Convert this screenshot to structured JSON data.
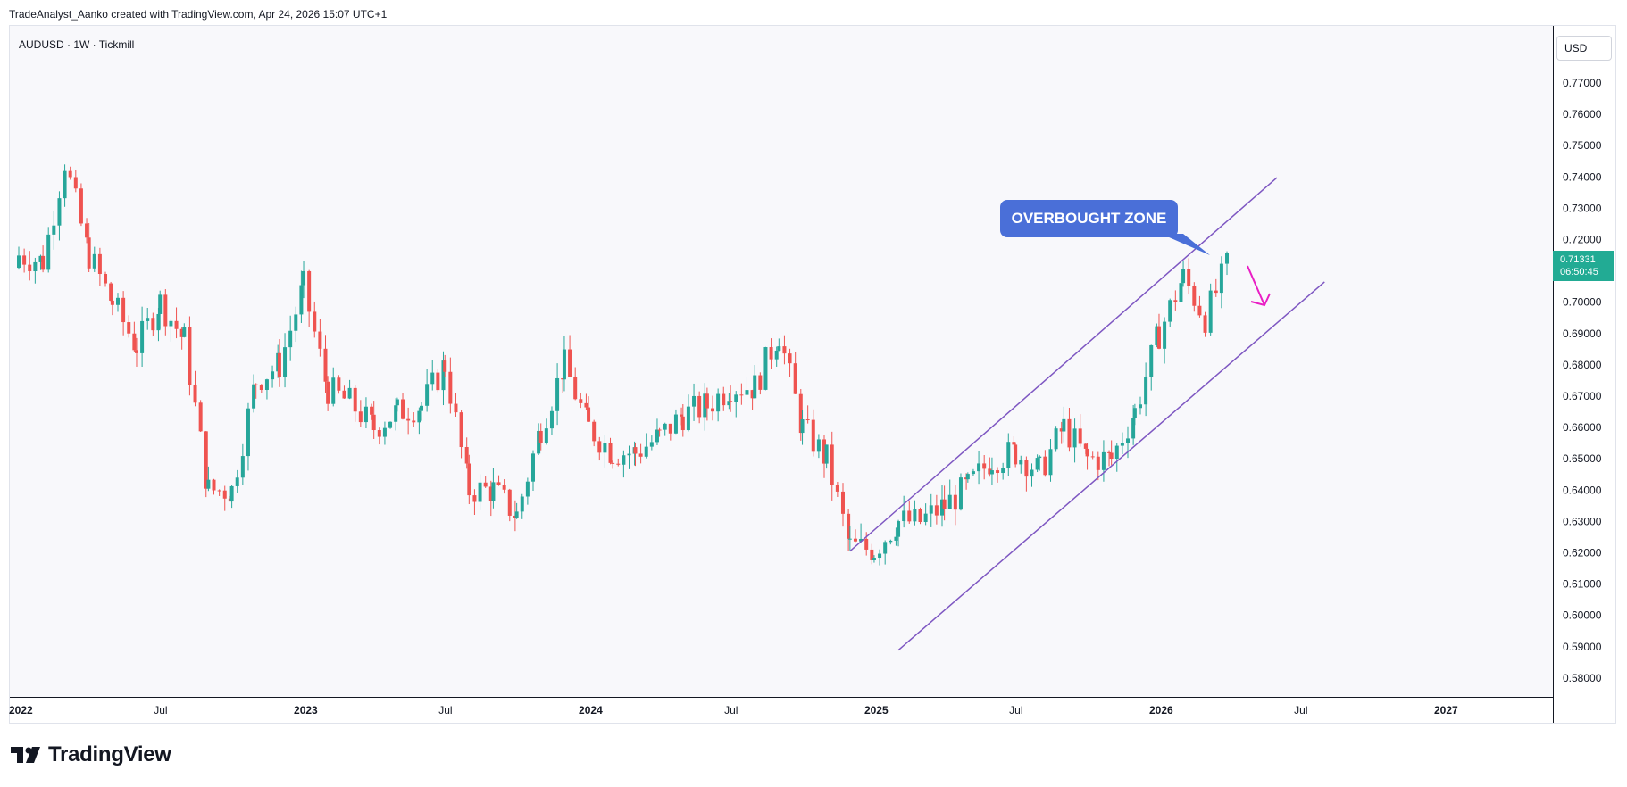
{
  "header": {
    "attribution": "TradeAnalyst_Aanko created with TradingView.com, Apr 24, 2026 15:07 UTC+1",
    "symbol_line": "AUDUSD · 1W · Tickmill"
  },
  "currency_button": "USD",
  "price_badge": {
    "price": "0.71331",
    "countdown": "06:50:45"
  },
  "annotation": {
    "callout_text": "OVERBOUGHT ZONE"
  },
  "brand": {
    "logo_text": "TradingView"
  },
  "colors": {
    "up": "#26a69a",
    "down": "#ef5350",
    "channel": "#7e57c2",
    "arrow": "#e91ec4",
    "callout": "#4a6fd8",
    "price_badge": "#22ab94"
  },
  "chart_data": {
    "type": "candlestick",
    "y_ticks": [
      "0.77000",
      "0.76000",
      "0.75000",
      "0.74000",
      "0.73000",
      "0.72000",
      "0.71000",
      "0.70000",
      "0.69000",
      "0.68000",
      "0.67000",
      "0.66000",
      "0.65000",
      "0.64000",
      "0.63000",
      "0.62000",
      "0.61000",
      "0.60000",
      "0.59000",
      "0.58000"
    ],
    "x_ticks": [
      {
        "label": "2022",
        "date": "2022-01-01",
        "bold": true
      },
      {
        "label": "Jul",
        "date": "2022-07-01",
        "bold": false
      },
      {
        "label": "2023",
        "date": "2023-01-01",
        "bold": true
      },
      {
        "label": "Jul",
        "date": "2023-07-01",
        "bold": false
      },
      {
        "label": "2024",
        "date": "2024-01-01",
        "bold": true
      },
      {
        "label": "Jul",
        "date": "2024-07-01",
        "bold": false
      },
      {
        "label": "2025",
        "date": "2025-01-01",
        "bold": true
      },
      {
        "label": "Jul",
        "date": "2025-07-01",
        "bold": false
      },
      {
        "label": "2026",
        "date": "2026-01-01",
        "bold": true
      },
      {
        "label": "Jul",
        "date": "2026-07-01",
        "bold": false
      },
      {
        "label": "2027",
        "date": "2027-01-01",
        "bold": true
      }
    ],
    "ylim": [
      0.575,
      0.785
    ],
    "series_close": [
      {
        "date": "2022-01-01",
        "value": 0.715
      },
      {
        "date": "2022-02-01",
        "value": 0.713
      },
      {
        "date": "2022-03-01",
        "value": 0.745
      },
      {
        "date": "2022-04-01",
        "value": 0.715
      },
      {
        "date": "2022-05-01",
        "value": 0.7
      },
      {
        "date": "2022-06-01",
        "value": 0.686
      },
      {
        "date": "2022-07-01",
        "value": 0.7
      },
      {
        "date": "2022-08-01",
        "value": 0.688
      },
      {
        "date": "2022-09-01",
        "value": 0.64
      },
      {
        "date": "2022-10-01",
        "value": 0.64
      },
      {
        "date": "2022-11-01",
        "value": 0.675
      },
      {
        "date": "2022-12-01",
        "value": 0.68
      },
      {
        "date": "2023-01-01",
        "value": 0.705
      },
      {
        "date": "2023-02-01",
        "value": 0.672
      },
      {
        "date": "2023-03-01",
        "value": 0.668
      },
      {
        "date": "2023-04-01",
        "value": 0.66
      },
      {
        "date": "2023-05-01",
        "value": 0.665
      },
      {
        "date": "2023-06-01",
        "value": 0.667
      },
      {
        "date": "2023-07-01",
        "value": 0.68
      },
      {
        "date": "2023-08-01",
        "value": 0.64
      },
      {
        "date": "2023-09-01",
        "value": 0.64
      },
      {
        "date": "2023-10-01",
        "value": 0.632
      },
      {
        "date": "2023-11-01",
        "value": 0.66
      },
      {
        "date": "2023-12-01",
        "value": 0.68
      },
      {
        "date": "2024-01-01",
        "value": 0.66
      },
      {
        "date": "2024-02-01",
        "value": 0.652
      },
      {
        "date": "2024-03-01",
        "value": 0.652
      },
      {
        "date": "2024-04-01",
        "value": 0.657
      },
      {
        "date": "2024-05-01",
        "value": 0.664
      },
      {
        "date": "2024-06-01",
        "value": 0.667
      },
      {
        "date": "2024-07-01",
        "value": 0.673
      },
      {
        "date": "2024-08-01",
        "value": 0.673
      },
      {
        "date": "2024-09-01",
        "value": 0.69
      },
      {
        "date": "2024-10-01",
        "value": 0.66
      },
      {
        "date": "2024-11-01",
        "value": 0.65
      },
      {
        "date": "2024-12-01",
        "value": 0.622
      },
      {
        "date": "2025-01-01",
        "value": 0.621
      },
      {
        "date": "2025-02-01",
        "value": 0.63
      },
      {
        "date": "2025-03-01",
        "value": 0.63
      },
      {
        "date": "2025-04-01",
        "value": 0.635
      },
      {
        "date": "2025-05-01",
        "value": 0.641
      },
      {
        "date": "2025-06-01",
        "value": 0.65
      },
      {
        "date": "2025-07-01",
        "value": 0.652
      },
      {
        "date": "2025-08-01",
        "value": 0.646
      },
      {
        "date": "2025-09-01",
        "value": 0.66
      },
      {
        "date": "2025-10-01",
        "value": 0.65
      },
      {
        "date": "2025-11-01",
        "value": 0.65
      },
      {
        "date": "2025-12-01",
        "value": 0.665
      },
      {
        "date": "2026-01-01",
        "value": 0.69
      },
      {
        "date": "2026-02-01",
        "value": 0.708
      },
      {
        "date": "2026-03-01",
        "value": 0.695
      },
      {
        "date": "2026-04-01",
        "value": 0.7133
      }
    ],
    "channel_upper": [
      {
        "date": "2024-12-01",
        "value": 0.6205
      },
      {
        "date": "2026-06-01",
        "value": 0.7398
      }
    ],
    "channel_lower": [
      {
        "date": "2025-02-01",
        "value": 0.5889
      },
      {
        "date": "2026-08-01",
        "value": 0.7065
      }
    ]
  }
}
